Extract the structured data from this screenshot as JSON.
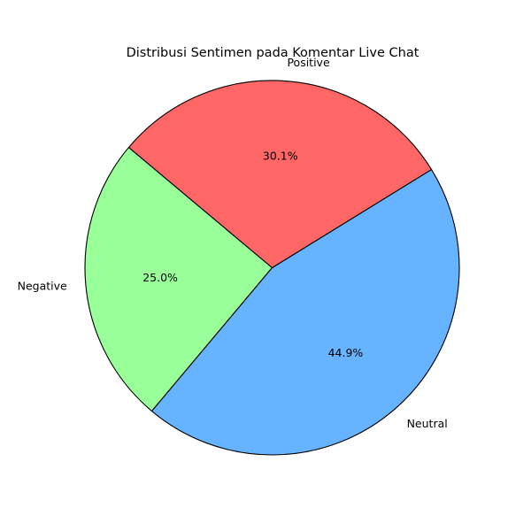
{
  "chart_data": {
    "type": "pie",
    "title": "Distribusi Sentimen pada Komentar Live Chat",
    "start_angle_deg": 140,
    "direction": "counterclockwise",
    "slices": [
      {
        "label": "Negative",
        "value": 25.0,
        "pct_label": "25.0%",
        "color": "#99ff99"
      },
      {
        "label": "Neutral",
        "value": 44.9,
        "pct_label": "44.9%",
        "color": "#66b3ff"
      },
      {
        "label": "Positive",
        "value": 30.1,
        "pct_label": "30.1%",
        "color": "#ff6666"
      }
    ]
  }
}
